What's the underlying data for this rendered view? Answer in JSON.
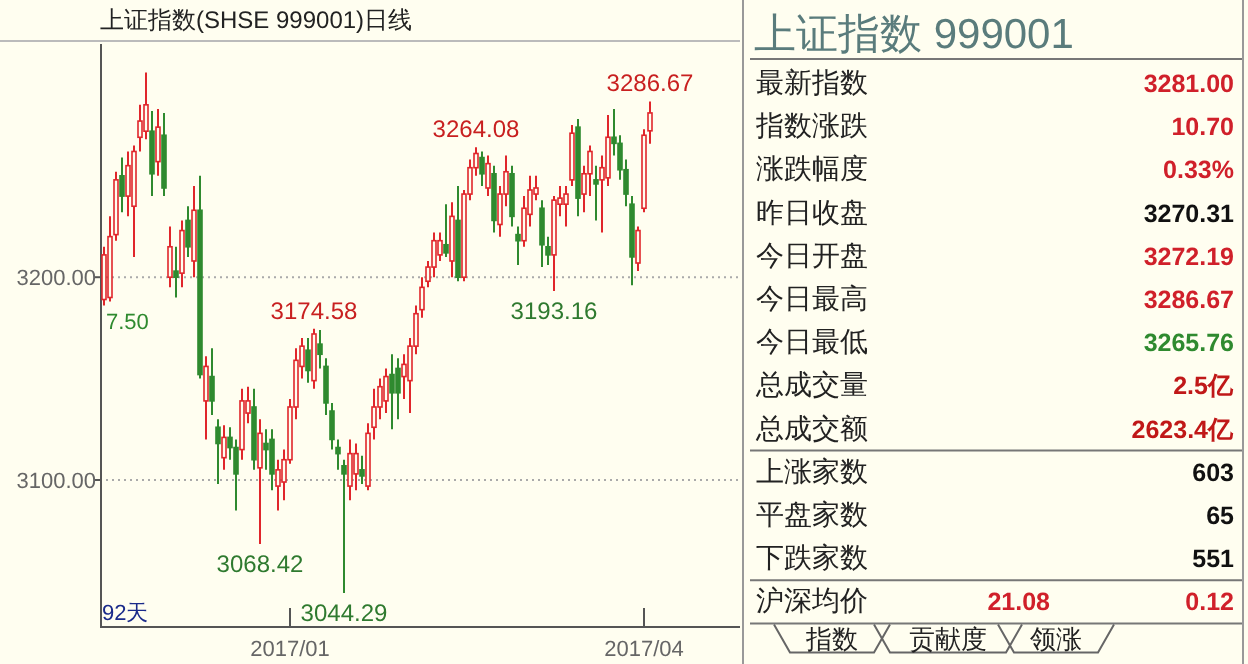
{
  "chart_data": [
    {
      "type": "candlestick",
      "title": "上证指数(SHSE 999001)日线",
      "categories": [
        null,
        null,
        null,
        null,
        null,
        null,
        null,
        null,
        null,
        null,
        null,
        null,
        null,
        null,
        null,
        null,
        null,
        null,
        null,
        null,
        null,
        null,
        null,
        null,
        null,
        null,
        null,
        null,
        null,
        null,
        null,
        "2017/01",
        null,
        null,
        null,
        null,
        null,
        null,
        null,
        null,
        null,
        null,
        null,
        null,
        null,
        null,
        null,
        null,
        null,
        null,
        null,
        null,
        null,
        null,
        null,
        null,
        null,
        null,
        null,
        null,
        null,
        null,
        null,
        null,
        null,
        null,
        null,
        null,
        null,
        null,
        null,
        null,
        null,
        null,
        null,
        null,
        null,
        null,
        null,
        null,
        null,
        null,
        null,
        null,
        null,
        null,
        null,
        null,
        null,
        null,
        "2017/04",
        null
      ],
      "ohlc": [
        [
          3189,
          3215,
          3186,
          3211
        ],
        [
          3190,
          3230,
          3188,
          3220
        ],
        [
          3221,
          3252,
          3218,
          3248
        ],
        [
          3250,
          3259,
          3232,
          3240
        ],
        [
          3240,
          3262,
          3230,
          3255
        ],
        [
          3235,
          3265,
          3210,
          3262
        ],
        [
          3269,
          3285,
          3262,
          3277
        ],
        [
          3272,
          3301,
          3268,
          3285
        ],
        [
          3272,
          3282,
          3240,
          3251
        ],
        [
          3257,
          3283,
          3250,
          3274
        ],
        [
          3270,
          3281,
          3240,
          3244
        ],
        [
          3200,
          3225,
          3195,
          3215
        ],
        [
          3203,
          3215,
          3190,
          3200
        ],
        [
          3202,
          3228,
          3195,
          3223
        ],
        [
          3228,
          3235,
          3210,
          3215
        ],
        [
          3208,
          3245,
          3200,
          3233
        ],
        [
          3233,
          3250,
          3150,
          3152
        ],
        [
          3139,
          3161,
          3120,
          3156
        ],
        [
          3151,
          3165,
          3132,
          3139
        ],
        [
          3126,
          3130,
          3098,
          3118
        ],
        [
          3111,
          3127,
          3105,
          3121
        ],
        [
          3121,
          3126,
          3110,
          3116
        ],
        [
          3116,
          3120,
          3085,
          3103
        ],
        [
          3115,
          3145,
          3110,
          3139
        ],
        [
          3133,
          3146,
          3128,
          3139
        ],
        [
          3136,
          3145,
          3105,
          3110
        ],
        [
          3106,
          3130,
          3068.42,
          3123
        ],
        [
          3118,
          3125,
          3105,
          3115
        ],
        [
          3120,
          3125,
          3095,
          3103
        ],
        [
          3097,
          3110,
          3085,
          3105
        ],
        [
          3099,
          3115,
          3090,
          3110
        ],
        [
          3110,
          3140,
          3108,
          3136
        ],
        [
          3136,
          3165,
          3130,
          3159
        ],
        [
          3156,
          3170,
          3150,
          3166
        ],
        [
          3164,
          3170,
          3148,
          3154
        ],
        [
          3149,
          3174.58,
          3145,
          3172
        ],
        [
          3167,
          3174,
          3155,
          3162
        ],
        [
          3156,
          3160,
          3132,
          3138
        ],
        [
          3134,
          3138,
          3115,
          3120
        ],
        [
          3116,
          3120,
          3105,
          3113
        ],
        [
          3107,
          3110,
          3044.29,
          3103
        ],
        [
          3097,
          3120,
          3090,
          3113
        ],
        [
          3103,
          3118,
          3095,
          3113
        ],
        [
          3105,
          3112,
          3098,
          3102
        ],
        [
          3097,
          3128,
          3095,
          3123
        ],
        [
          3126,
          3145,
          3120,
          3136
        ],
        [
          3136,
          3150,
          3130,
          3146
        ],
        [
          3139,
          3155,
          3133,
          3151
        ],
        [
          3152,
          3162,
          3125,
          3143
        ],
        [
          3155,
          3160,
          3130,
          3143
        ],
        [
          3151,
          3162,
          3140,
          3157
        ],
        [
          3149,
          3170,
          3133,
          3166
        ],
        [
          3166,
          3186,
          3162,
          3182
        ],
        [
          3184,
          3200,
          3180,
          3195
        ],
        [
          3198,
          3208,
          3195,
          3205
        ],
        [
          3205,
          3222,
          3200,
          3218
        ],
        [
          3211,
          3222,
          3208,
          3218
        ],
        [
          3216,
          3236,
          3210,
          3212
        ],
        [
          3208,
          3237,
          3200,
          3230
        ],
        [
          3228,
          3245,
          3198,
          3200
        ],
        [
          3200,
          3243,
          3198,
          3241
        ],
        [
          3241,
          3258,
          3238,
          3254
        ],
        [
          3254,
          3264.08,
          3250,
          3261
        ],
        [
          3259,
          3262,
          3245,
          3251
        ],
        [
          3244,
          3260,
          3240,
          3256
        ],
        [
          3251,
          3255,
          3222,
          3228
        ],
        [
          3226,
          3245,
          3220,
          3241
        ],
        [
          3241,
          3260,
          3235,
          3252
        ],
        [
          3251,
          3255,
          3225,
          3230
        ],
        [
          3221,
          3225,
          3206,
          3218
        ],
        [
          3218,
          3240,
          3215,
          3234
        ],
        [
          3231,
          3250,
          3225,
          3243
        ],
        [
          3241,
          3250,
          3238,
          3244
        ],
        [
          3234,
          3238,
          3205,
          3216
        ],
        [
          3215,
          3220,
          3206,
          3211
        ],
        [
          3211,
          3240,
          3193.16,
          3238
        ],
        [
          3236,
          3245,
          3230,
          3239
        ],
        [
          3236,
          3245,
          3225,
          3241
        ],
        [
          3248,
          3275,
          3245,
          3271
        ],
        [
          3274,
          3278,
          3230,
          3239
        ],
        [
          3241,
          3255,
          3232,
          3251
        ],
        [
          3251,
          3265,
          3240,
          3262
        ],
        [
          3248,
          3255,
          3228,
          3246
        ],
        [
          3248,
          3260,
          3222,
          3254
        ],
        [
          3249,
          3280,
          3245,
          3269
        ],
        [
          3269,
          3283,
          3260,
          3266
        ],
        [
          3266,
          3270,
          3248,
          3253
        ],
        [
          3253,
          3258,
          3235,
          3241
        ],
        [
          3236,
          3240,
          3196,
          3210
        ],
        [
          3207,
          3225,
          3203,
          3223
        ],
        [
          3234,
          3273,
          3232,
          3270
        ],
        [
          3272.19,
          3286.67,
          3265.76,
          3281.0
        ]
      ],
      "colors": [
        "#e0262b",
        "#e0262b",
        "#e0262b",
        "#2f8a2f",
        "#e0262b",
        "#e0262b",
        "#e0262b",
        "#e0262b",
        "#2f8a2f",
        "#e0262b",
        "#2f8a2f",
        "#e0262b",
        "#2f8a2f",
        "#e0262b",
        "#2f8a2f",
        "#e0262b",
        "#2f8a2f",
        "#e0262b",
        "#2f8a2f",
        "#2f8a2f",
        "#e0262b",
        "#2f8a2f",
        "#2f8a2f",
        "#e0262b",
        "#e0262b",
        "#2f8a2f",
        "#e0262b",
        "#2f8a2f",
        "#2f8a2f",
        "#e0262b",
        "#e0262b",
        "#e0262b",
        "#e0262b",
        "#e0262b",
        "#2f8a2f",
        "#e0262b",
        "#2f8a2f",
        "#2f8a2f",
        "#2f8a2f",
        "#2f8a2f",
        "#2f8a2f",
        "#e0262b",
        "#e0262b",
        "#2f8a2f",
        "#e0262b",
        "#e0262b",
        "#e0262b",
        "#e0262b",
        "#2f8a2f",
        "#2f8a2f",
        "#e0262b",
        "#e0262b",
        "#e0262b",
        "#e0262b",
        "#e0262b",
        "#e0262b",
        "#e0262b",
        "#2f8a2f",
        "#e0262b",
        "#2f8a2f",
        "#e0262b",
        "#e0262b",
        "#e0262b",
        "#2f8a2f",
        "#e0262b",
        "#2f8a2f",
        "#e0262b",
        "#e0262b",
        "#2f8a2f",
        "#2f8a2f",
        "#e0262b",
        "#e0262b",
        "#e0262b",
        "#2f8a2f",
        "#2f8a2f",
        "#e0262b",
        "#e0262b",
        "#e0262b",
        "#e0262b",
        "#2f8a2f",
        "#e0262b",
        "#e0262b",
        "#2f8a2f",
        "#e0262b",
        "#e0262b",
        "#2f8a2f",
        "#2f8a2f",
        "#2f8a2f",
        "#2f8a2f",
        "#e0262b",
        "#e0262b",
        "#e0262b"
      ],
      "ylim": [
        3028,
        3315
      ],
      "yticks": [
        {
          "value": 3100,
          "label": "3100.00"
        },
        {
          "value": 3200,
          "label": "3200.00"
        }
      ],
      "grid": "y",
      "annotations": [
        {
          "text": "3286.67",
          "y": 3286.67
        },
        {
          "text": "3264.08",
          "y": 3264.08
        },
        {
          "text": "3174.58",
          "y": 3174.58
        },
        {
          "text": "3193.16",
          "y": 3193.16
        },
        {
          "text": "3068.42",
          "y": 3068.42
        },
        {
          "text": "3044.29",
          "y": 3044.29
        },
        "7.50",
        "92天"
      ]
    },
    {
      "type": "other",
      "title": "上证指数  999001",
      "categories": [
        "最新指数",
        "指数涨跌",
        "涨跌幅度",
        "昨日收盘",
        "今日开盘",
        "今日最高",
        "今日最低",
        "总成交量",
        "总成交额",
        "上涨家数",
        "平盘家数",
        "下跌家数",
        "沪深均价"
      ],
      "value_labels": [
        "3281.00",
        "10.70",
        "0.33%",
        "3270.31",
        "3272.19",
        "3286.67",
        "3265.76",
        "2.5亿",
        "2623.4亿",
        "603",
        "65",
        "551",
        "0.12"
      ],
      "colors": [
        "#d0202a",
        "#d0202a",
        "#d0202a",
        "#111111",
        "#d0202a",
        "#d0202a",
        "#2f8a2f",
        "#c01818",
        "#c01818",
        "#111111",
        "#111111",
        "#111111",
        "#d0202a"
      ],
      "annotations": [
        "21.08",
        "指数",
        "贡献度",
        "领涨"
      ]
    }
  ]
}
